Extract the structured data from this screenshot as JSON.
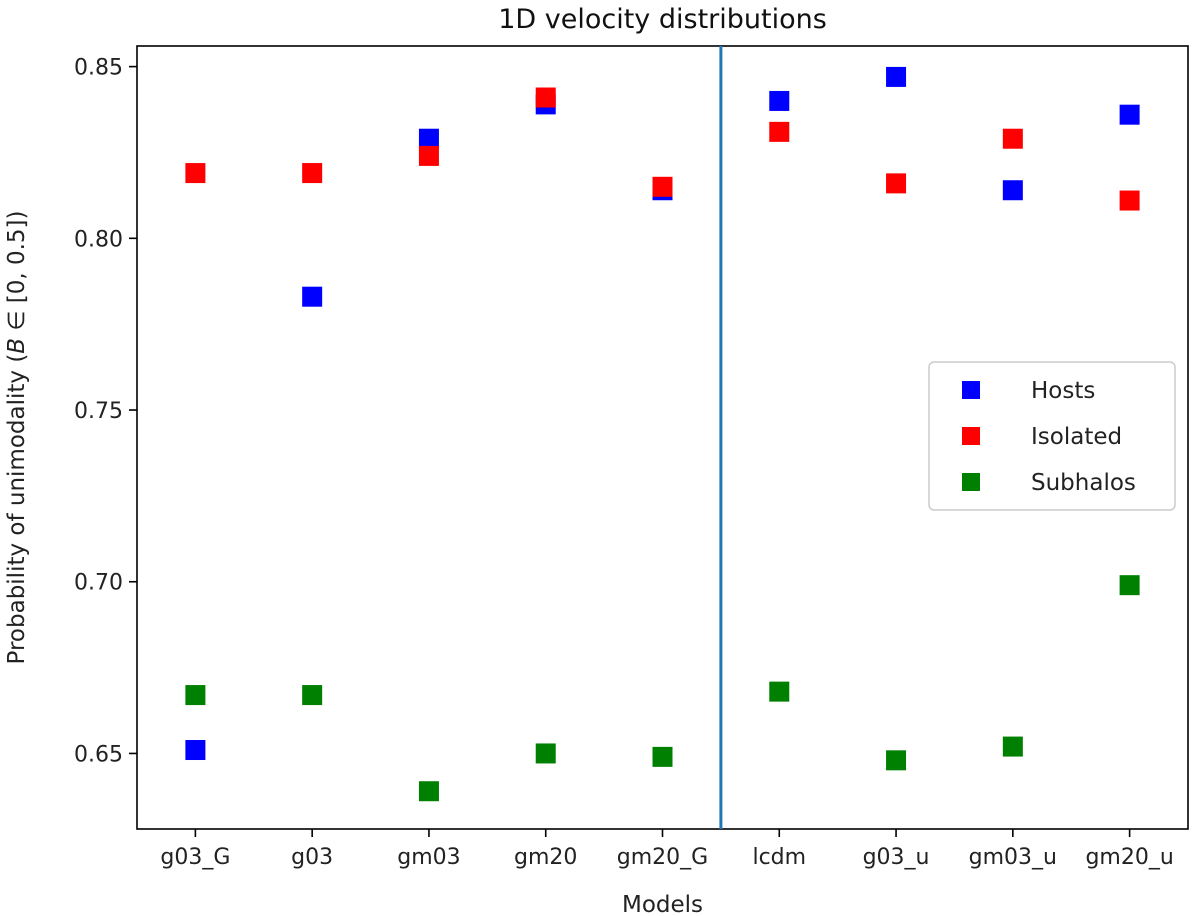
{
  "chart_data": {
    "type": "scatter",
    "title": "1D velocity distributions",
    "xlabel": "Models",
    "ylabel": "Probability of unimodality (B ∈ [0, 0.5])",
    "categories": [
      "g03_G",
      "g03",
      "gm03",
      "gm20",
      "gm20_G",
      "lcdm",
      "g03_u",
      "gm03_u",
      "gm20_u"
    ],
    "ylim": [
      0.628,
      0.856
    ],
    "yticks": [
      0.65,
      0.7,
      0.75,
      0.8,
      0.85
    ],
    "ytick_labels": [
      "0.65",
      "0.70",
      "0.75",
      "0.80",
      "0.85"
    ],
    "divider_after_index": 4,
    "divider_color": "#1f77b4",
    "legend_position": "center-right",
    "series": [
      {
        "name": "Hosts",
        "color": "#0000ff",
        "values": [
          0.651,
          0.783,
          0.829,
          0.839,
          0.814,
          0.84,
          0.847,
          0.814,
          0.836
        ]
      },
      {
        "name": "Isolated",
        "color": "#ff0000",
        "values": [
          0.819,
          0.819,
          0.824,
          0.841,
          0.815,
          0.831,
          0.816,
          0.829,
          0.811
        ]
      },
      {
        "name": "Subhalos",
        "color": "#008000",
        "values": [
          0.667,
          0.667,
          0.639,
          0.65,
          0.649,
          0.668,
          0.648,
          0.652,
          0.699
        ]
      }
    ]
  }
}
